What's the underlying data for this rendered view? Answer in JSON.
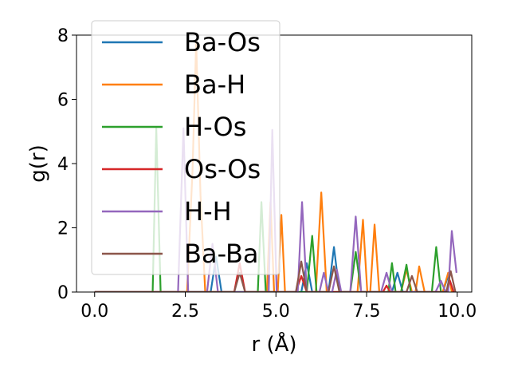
{
  "chart_data": {
    "type": "line",
    "xlabel": "r (Å)",
    "ylabel": "g(r)",
    "xlim": [
      -0.5,
      10.4
    ],
    "ylim": [
      0,
      8
    ],
    "xticks": [
      0.0,
      2.5,
      5.0,
      7.5,
      10.0
    ],
    "xtick_labels": [
      "0.0",
      "2.5",
      "5.0",
      "7.5",
      "10.0"
    ],
    "yticks": [
      0,
      2,
      4,
      6,
      8
    ],
    "ytick_labels": [
      "0",
      "2",
      "4",
      "6",
      "8"
    ],
    "grid": false,
    "legend_position": "top-left",
    "series": [
      {
        "name": "Ba-Os",
        "color": "#1f77b4",
        "points": [
          [
            0,
            0
          ],
          [
            3.2,
            0
          ],
          [
            3.35,
            1.1
          ],
          [
            3.5,
            0
          ],
          [
            5.7,
            0
          ],
          [
            5.85,
            0.9
          ],
          [
            6.0,
            0
          ],
          [
            6.45,
            0
          ],
          [
            6.6,
            1.4
          ],
          [
            6.75,
            0
          ],
          [
            8.2,
            0
          ],
          [
            8.35,
            0.6
          ],
          [
            8.5,
            0
          ],
          [
            9.6,
            0
          ],
          [
            9.75,
            0.5
          ],
          [
            9.9,
            0
          ]
        ]
      },
      {
        "name": "Ba-H",
        "color": "#ff7f0e",
        "points": [
          [
            0,
            0
          ],
          [
            2.55,
            0
          ],
          [
            2.7,
            3.8
          ],
          [
            2.8,
            7.8
          ],
          [
            2.92,
            3.0
          ],
          [
            3.05,
            0
          ],
          [
            4.75,
            0
          ],
          [
            4.85,
            2.8
          ],
          [
            4.95,
            0
          ],
          [
            5.05,
            0
          ],
          [
            5.15,
            2.4
          ],
          [
            5.25,
            0
          ],
          [
            6.1,
            0
          ],
          [
            6.25,
            3.1
          ],
          [
            6.4,
            0
          ],
          [
            7.25,
            0
          ],
          [
            7.4,
            2.25
          ],
          [
            7.52,
            0
          ],
          [
            7.6,
            0
          ],
          [
            7.72,
            2.1
          ],
          [
            7.85,
            0
          ],
          [
            8.45,
            0
          ],
          [
            8.6,
            0.7
          ],
          [
            8.75,
            0
          ],
          [
            8.85,
            0
          ],
          [
            8.95,
            0.8
          ],
          [
            9.1,
            0
          ],
          [
            9.6,
            0
          ],
          [
            9.75,
            0.6
          ],
          [
            9.85,
            0
          ]
        ]
      },
      {
        "name": "H-Os",
        "color": "#2ca02c",
        "points": [
          [
            0,
            0
          ],
          [
            1.6,
            0
          ],
          [
            1.7,
            5.1
          ],
          [
            1.82,
            0
          ],
          [
            4.5,
            0
          ],
          [
            4.6,
            2.8
          ],
          [
            4.72,
            0
          ],
          [
            5.85,
            0
          ],
          [
            6.0,
            1.75
          ],
          [
            6.12,
            0
          ],
          [
            7.05,
            0
          ],
          [
            7.2,
            1.25
          ],
          [
            7.35,
            0
          ],
          [
            8.1,
            0
          ],
          [
            8.2,
            0.9
          ],
          [
            8.3,
            0
          ],
          [
            8.45,
            0
          ],
          [
            8.6,
            0.85
          ],
          [
            8.72,
            0
          ],
          [
            9.3,
            0
          ],
          [
            9.42,
            1.4
          ],
          [
            9.55,
            0
          ]
        ]
      },
      {
        "name": "Os-Os",
        "color": "#d62728",
        "points": [
          [
            0,
            0
          ],
          [
            3.85,
            0
          ],
          [
            4.0,
            0.9
          ],
          [
            4.15,
            0
          ],
          [
            5.55,
            0
          ],
          [
            5.7,
            0.5
          ],
          [
            5.85,
            0
          ],
          [
            7.95,
            0
          ],
          [
            8.05,
            0.2
          ],
          [
            8.15,
            0
          ],
          [
            9.7,
            0
          ],
          [
            9.8,
            0.35
          ],
          [
            9.9,
            0
          ]
        ]
      },
      {
        "name": "H-H",
        "color": "#9467bd",
        "points": [
          [
            0,
            0
          ],
          [
            2.3,
            0
          ],
          [
            2.45,
            5.1
          ],
          [
            2.58,
            0
          ],
          [
            3.1,
            0
          ],
          [
            3.25,
            1.5
          ],
          [
            3.4,
            0
          ],
          [
            4.8,
            0
          ],
          [
            4.9,
            5.05
          ],
          [
            5.02,
            0
          ],
          [
            5.6,
            0
          ],
          [
            5.72,
            2.8
          ],
          [
            5.85,
            0
          ],
          [
            6.2,
            0
          ],
          [
            6.32,
            0.6
          ],
          [
            6.45,
            0
          ],
          [
            6.55,
            0
          ],
          [
            6.68,
            0.7
          ],
          [
            6.8,
            0
          ],
          [
            7.05,
            0
          ],
          [
            7.2,
            2.35
          ],
          [
            7.35,
            0
          ],
          [
            7.9,
            0
          ],
          [
            8.05,
            0.6
          ],
          [
            8.2,
            0
          ],
          [
            9.4,
            0
          ],
          [
            9.55,
            0.35
          ],
          [
            9.68,
            0
          ],
          [
            9.75,
            0
          ],
          [
            9.85,
            1.9
          ],
          [
            9.98,
            0.6
          ]
        ]
      },
      {
        "name": "Ba-Ba",
        "color": "#8c564b",
        "points": [
          [
            0,
            0
          ],
          [
            3.85,
            0
          ],
          [
            4.0,
            0.6
          ],
          [
            4.15,
            0
          ],
          [
            5.55,
            0
          ],
          [
            5.7,
            0.95
          ],
          [
            5.85,
            0
          ],
          [
            6.45,
            0
          ],
          [
            6.6,
            0.8
          ],
          [
            6.75,
            0
          ],
          [
            8.6,
            0
          ],
          [
            8.75,
            0.5
          ],
          [
            8.9,
            0
          ],
          [
            9.7,
            0
          ],
          [
            9.82,
            0.65
          ],
          [
            9.95,
            0
          ]
        ]
      }
    ]
  }
}
